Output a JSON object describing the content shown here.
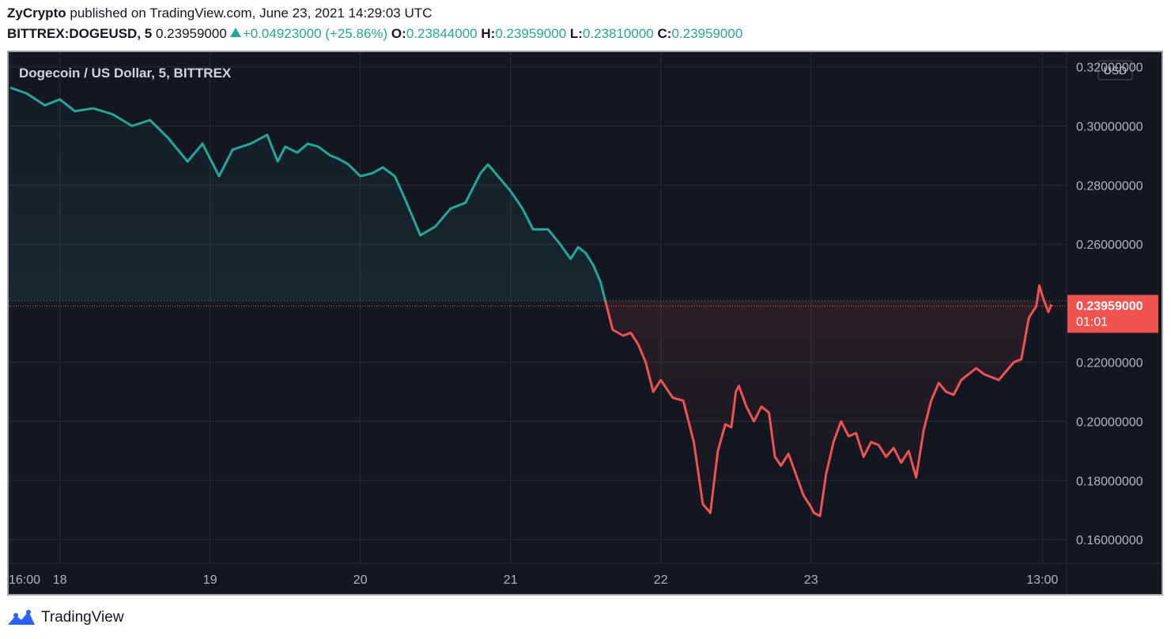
{
  "header": {
    "publisher": "ZyCrypto",
    "published_text": "published on TradingView.com, June 23, 2021 14:29:03 UTC",
    "symbol": "BITTREX:DOGEUSD, 5",
    "last": "0.23959000",
    "change": "+0.04923000 (+25.86%)",
    "o_label": "O:",
    "o_value": "0.23844000",
    "h_label": "H:",
    "h_value": "0.23959000",
    "l_label": "L:",
    "l_value": "0.23810000",
    "c_label": "C:",
    "c_value": "0.23959000"
  },
  "footer": {
    "brand": "TradingView"
  },
  "colors": {
    "background": "#131722",
    "grid": "#2a2e39",
    "up": "#26a69a",
    "down": "#ef5350",
    "text": "#b2b5be"
  },
  "chart_data": {
    "type": "area",
    "title": "Dogecoin / US Dollar, 5, BITTREX",
    "currency": "USD",
    "y_ticks": [
      "0.32000000",
      "0.30000000",
      "0.28000000",
      "0.26000000",
      "0.22000000",
      "0.20000000",
      "0.18000000",
      "0.16000000"
    ],
    "x_ticks": [
      "16:00",
      "18",
      "19",
      "20",
      "21",
      "22",
      "23",
      "13:00"
    ],
    "ylim": [
      0.152,
      0.325
    ],
    "baseline": 0.2408,
    "last_price": "0.23959000",
    "countdown": "01:01",
    "x_unit": "days from June 17 2021 00:00 UTC",
    "series": [
      {
        "x": [
          0.67,
          0.78,
          0.9,
          1.0,
          1.1,
          1.22,
          1.35,
          1.48,
          1.6,
          1.72,
          1.85,
          1.95,
          2.06,
          2.15,
          2.27,
          2.38,
          2.45,
          2.5,
          2.58,
          2.65,
          2.72,
          2.8,
          2.85,
          2.92,
          3.0,
          3.08,
          3.15,
          3.23,
          3.3,
          3.4,
          3.5,
          3.6,
          3.7,
          3.8,
          3.85,
          3.95,
          4.0,
          4.08,
          4.15,
          4.25,
          4.33,
          4.4,
          4.45,
          4.5,
          4.55,
          4.6,
          4.68,
          4.75,
          4.8,
          4.85,
          4.9,
          4.95,
          5.0,
          5.08,
          5.15,
          5.22,
          5.28,
          5.33,
          5.38,
          5.43,
          5.47,
          5.5,
          5.52,
          5.57,
          5.62,
          5.67,
          5.72,
          5.76,
          5.8,
          5.85,
          5.9,
          5.95,
          6.0,
          6.02,
          6.06,
          6.1,
          6.15,
          6.2,
          6.25,
          6.3,
          6.35,
          6.4,
          6.45,
          6.5,
          6.55,
          6.6,
          6.65,
          6.7,
          6.75,
          6.8,
          6.85,
          6.9,
          6.95,
          7.0,
          7.05,
          7.1,
          7.15,
          7.2,
          7.25,
          7.3,
          7.35,
          7.4,
          7.45,
          7.5,
          7.52,
          7.55,
          7.58,
          7.6
        ],
        "y": [
          0.313,
          0.311,
          0.307,
          0.309,
          0.305,
          0.306,
          0.304,
          0.3,
          0.302,
          0.296,
          0.288,
          0.294,
          0.283,
          0.292,
          0.294,
          0.297,
          0.288,
          0.293,
          0.291,
          0.294,
          0.293,
          0.29,
          0.289,
          0.287,
          0.283,
          0.284,
          0.286,
          0.283,
          0.275,
          0.263,
          0.266,
          0.272,
          0.274,
          0.284,
          0.287,
          0.281,
          0.278,
          0.272,
          0.265,
          0.265,
          0.26,
          0.255,
          0.259,
          0.257,
          0.253,
          0.247,
          0.231,
          0.229,
          0.23,
          0.226,
          0.22,
          0.21,
          0.214,
          0.208,
          0.207,
          0.193,
          0.172,
          0.169,
          0.19,
          0.199,
          0.198,
          0.21,
          0.212,
          0.205,
          0.2,
          0.205,
          0.203,
          0.188,
          0.185,
          0.189,
          0.182,
          0.175,
          0.171,
          0.169,
          0.168,
          0.182,
          0.193,
          0.2,
          0.195,
          0.196,
          0.188,
          0.193,
          0.192,
          0.188,
          0.191,
          0.186,
          0.19,
          0.181,
          0.197,
          0.207,
          0.213,
          0.21,
          0.209,
          0.214,
          0.216,
          0.218,
          0.216,
          0.215,
          0.214,
          0.217,
          0.22,
          0.221,
          0.235,
          0.239,
          0.246,
          0.241,
          0.237,
          0.2396
        ]
      }
    ]
  }
}
